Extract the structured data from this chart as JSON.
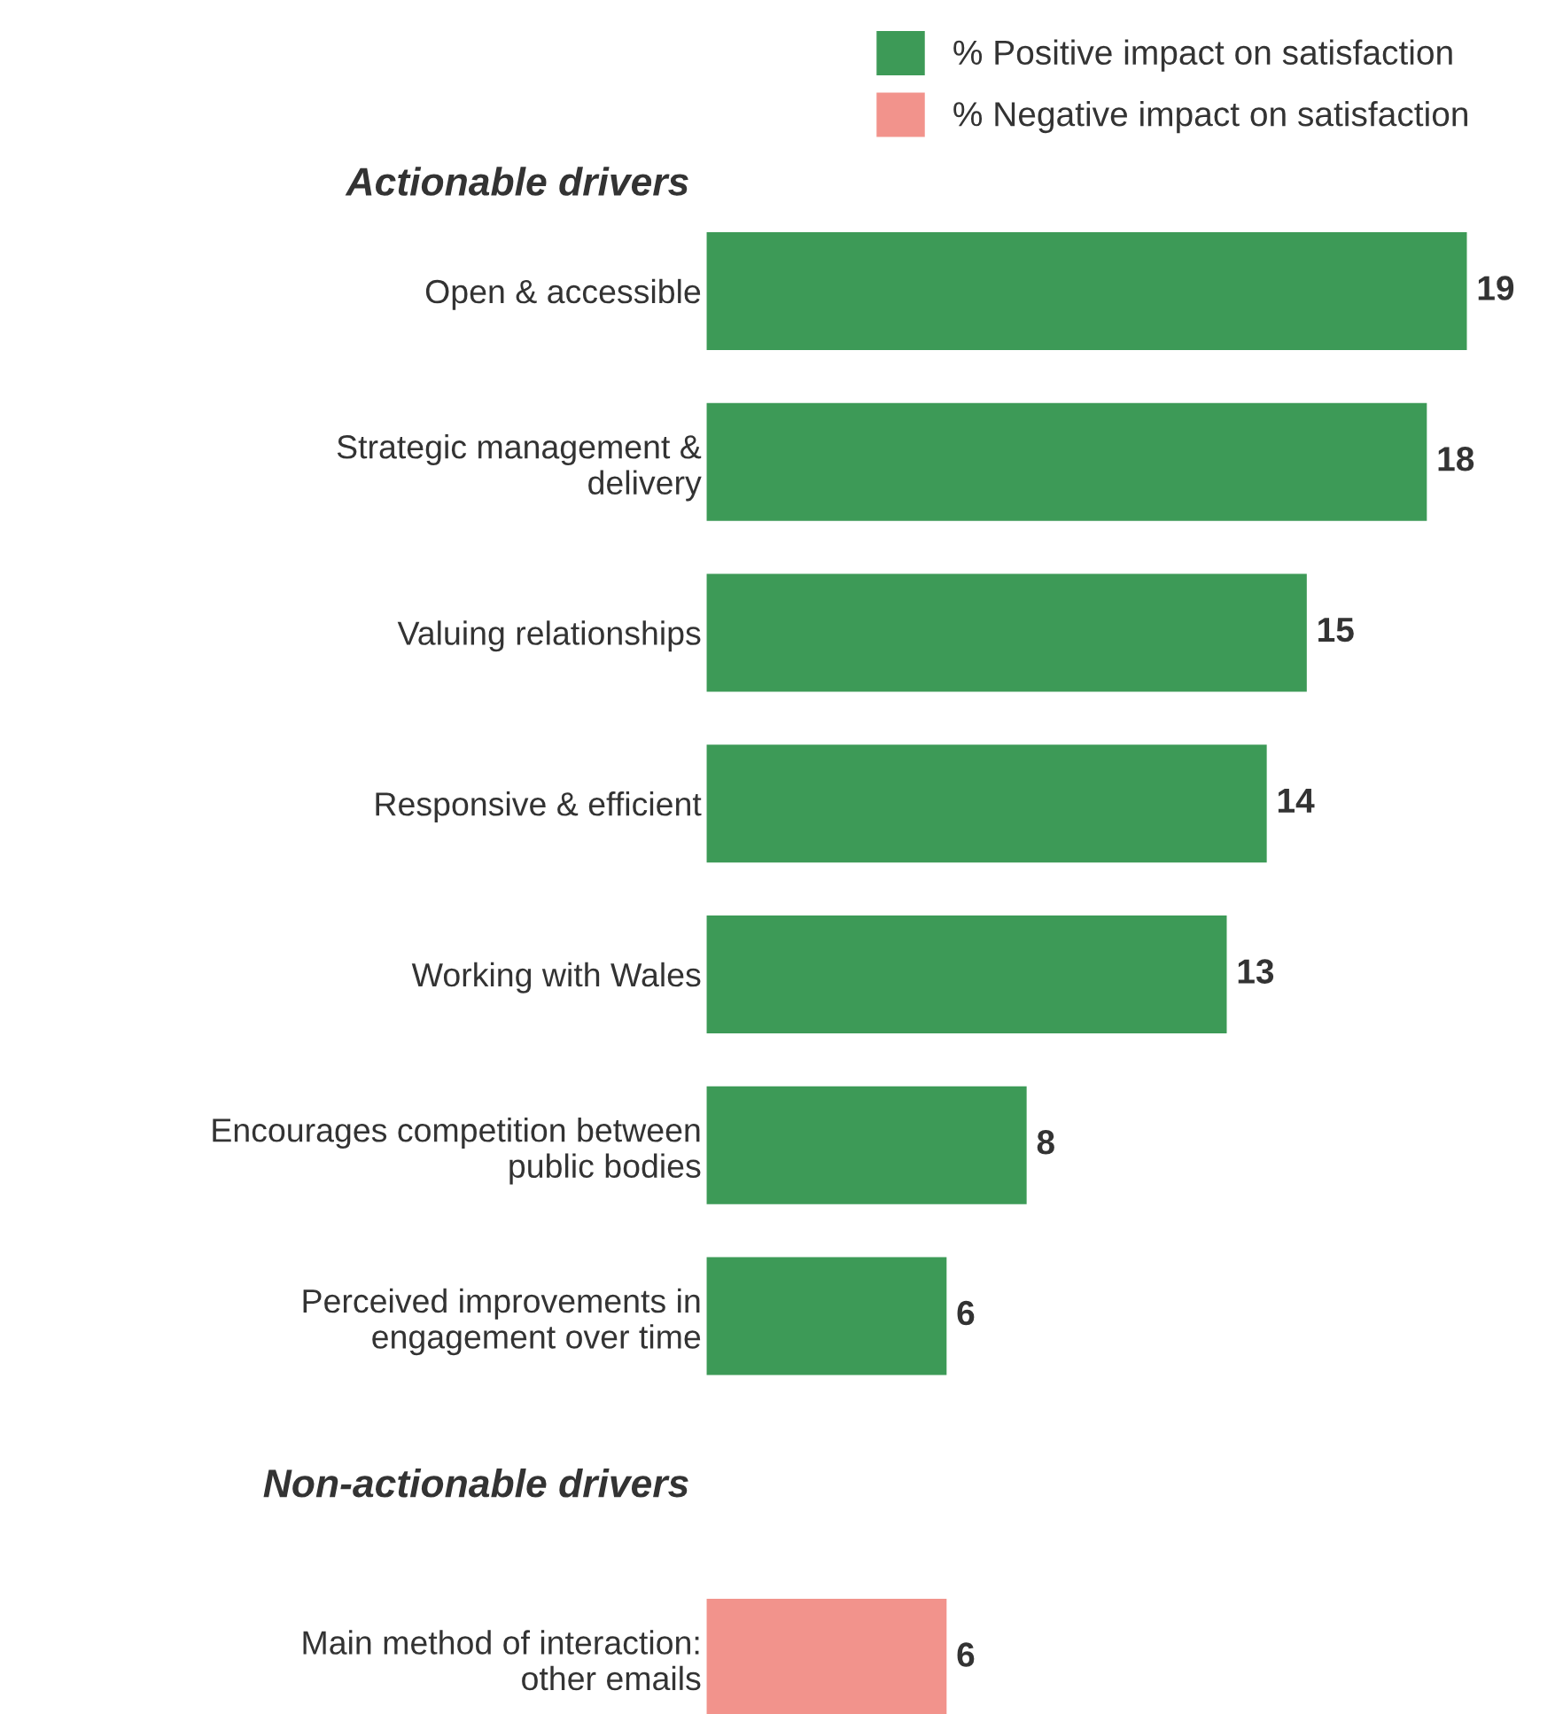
{
  "chart_data": {
    "type": "bar",
    "orientation": "horizontal",
    "legend": "top right",
    "data_labels": true,
    "grid": false,
    "categories": [
      "Open & accessible",
      "Strategic management &\ndelivery",
      "Valuing relationships",
      "Responsive & efficient",
      "Working with Wales",
      "Encourages competition between\npublic bodies",
      "Perceived improvements in\nengagement over time",
      null,
      "Main method of interaction:\nother emails"
    ],
    "series": [
      {
        "name": "% Positive impact on satisfaction",
        "color": "#3d9a57",
        "values": [
          19,
          18,
          15,
          14,
          13,
          8,
          6,
          null,
          null
        ]
      },
      {
        "name": "% Negative impact on satisfaction",
        "color": "#f2938c",
        "values": [
          null,
          null,
          null,
          null,
          null,
          null,
          null,
          null,
          6
        ]
      }
    ],
    "annotations": [
      "Actionable drivers",
      "Non-actionable drivers"
    ]
  }
}
